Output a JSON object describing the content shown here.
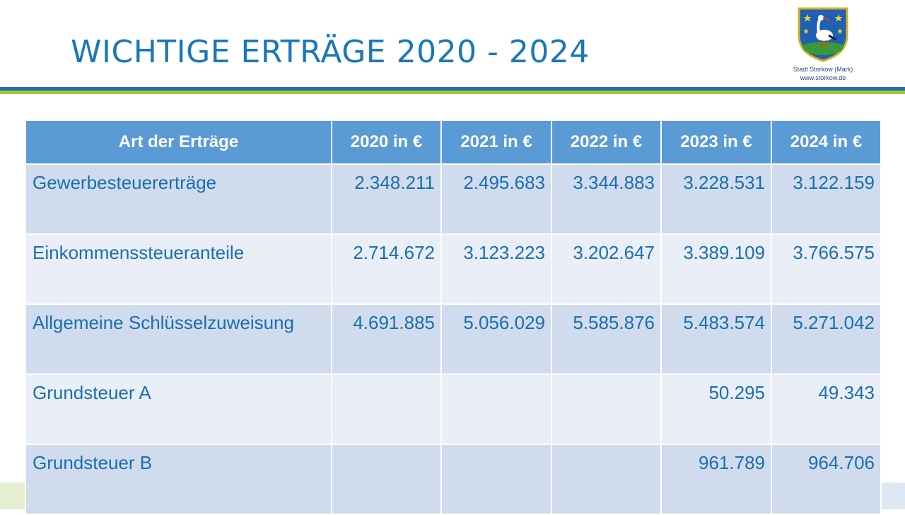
{
  "title": "WICHTIGE ERTRÄGE 2020 - 2024",
  "logo": {
    "line1": "Stadt Storkow (Mark)",
    "line2": "www.storkow.de"
  },
  "colors": {
    "title": "#1a78b8",
    "header_bg": "#5b9bd5",
    "row_odd": "#d0dcee",
    "row_even": "#e9eef7",
    "bar_blue": "#1f6fb0",
    "bar_green": "#9fc83a"
  },
  "table": {
    "headers": [
      "Art der Erträge",
      "2020 in €",
      "2021 in €",
      "2022 in €",
      "2023 in €",
      "2024 in €"
    ],
    "rows": [
      [
        "Gewerbesteuererträge",
        "2.348.211",
        "2.495.683",
        "3.344.883",
        "3.228.531",
        "3.122.159"
      ],
      [
        "Einkommenssteueranteile",
        "2.714.672",
        "3.123.223",
        "3.202.647",
        "3.389.109",
        "3.766.575"
      ],
      [
        "Allgemeine Schlüsselzuweisung",
        "4.691.885",
        "5.056.029",
        "5.585.876",
        "5.483.574",
        "5.271.042"
      ],
      [
        "Grundsteuer A",
        "",
        "",
        "",
        "50.295",
        "49.343"
      ],
      [
        "Grundsteuer B",
        "",
        "",
        "",
        "961.789",
        "964.706"
      ]
    ]
  }
}
